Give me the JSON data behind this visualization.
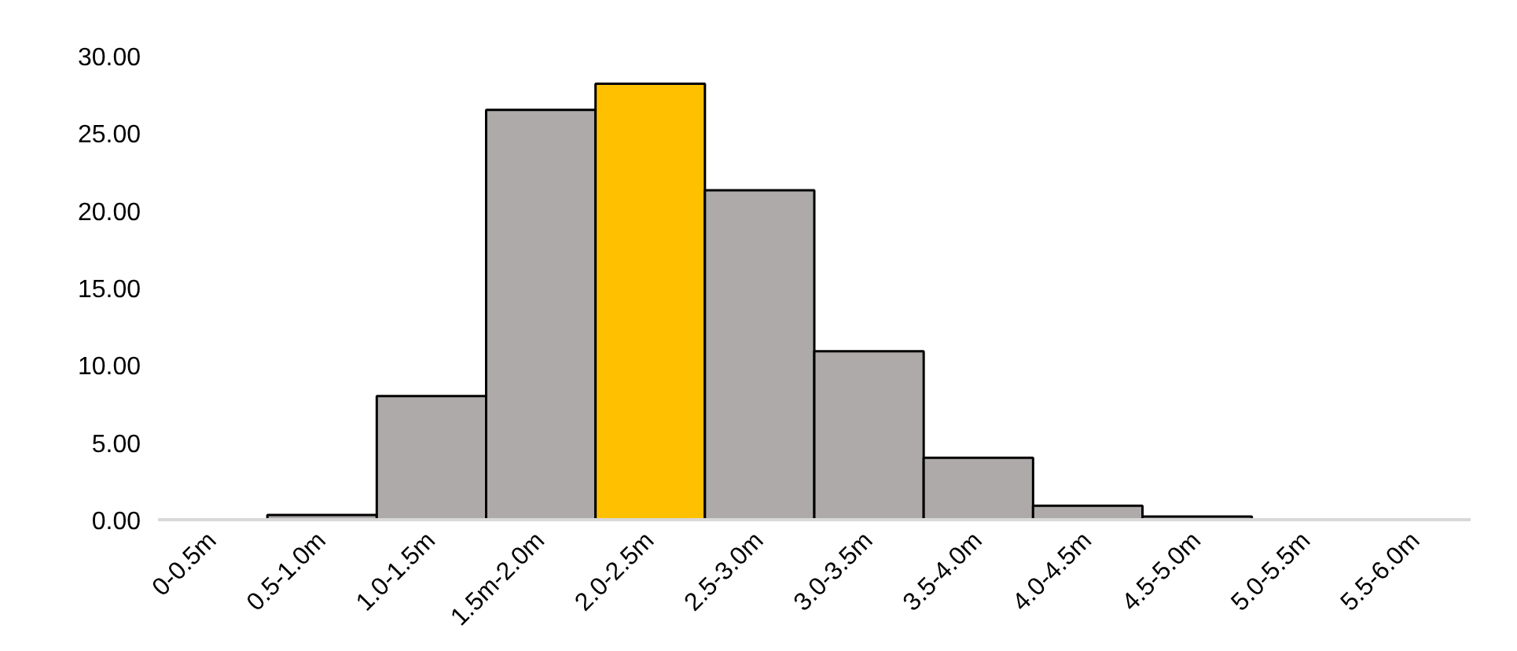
{
  "chart_data": {
    "type": "bar",
    "categories": [
      "0-0.5m",
      "0.5-1.0m",
      "1.0-1.5m",
      "1.5m-2.0m",
      "2.0-2.5m",
      "2.5-3.0m",
      "3.0-3.5m",
      "3.5-4.0m",
      "4.0-4.5m",
      "4.5-5.0m",
      "5.0-5.5m",
      "5.5-6.0m"
    ],
    "values": [
      0,
      0.3,
      8.0,
      26.5,
      28.2,
      21.3,
      10.9,
      4.0,
      0.9,
      0.2,
      0,
      0
    ],
    "colors": [
      "#aeaaaa",
      "#aeaaaa",
      "#aeaaaa",
      "#aeaaaa",
      "#ffc000",
      "#aeaaaa",
      "#aeaaaa",
      "#aeaaaa",
      "#aeaaaa",
      "#aeaaaa",
      "#aeaaaa",
      "#aeaaaa"
    ],
    "ylim": [
      0,
      30
    ],
    "yticks": [
      {
        "value": 0,
        "label": "0.00"
      },
      {
        "value": 5,
        "label": "5.00"
      },
      {
        "value": 10,
        "label": "10.00"
      },
      {
        "value": 15,
        "label": "15.00"
      },
      {
        "value": 20,
        "label": "20.00"
      },
      {
        "value": 25,
        "label": "25.00"
      },
      {
        "value": 30,
        "label": "30.00"
      }
    ],
    "grid": false
  }
}
